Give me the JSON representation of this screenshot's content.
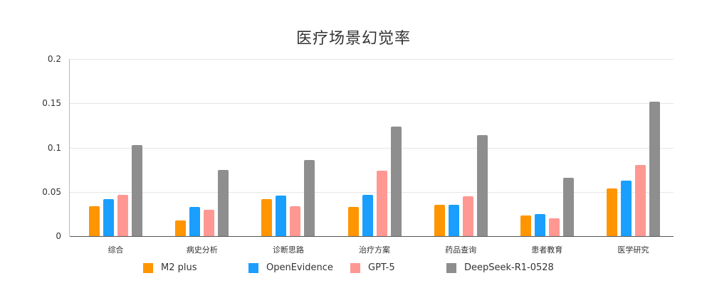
{
  "chart_data": {
    "type": "bar",
    "title": "医疗场景幻觉率",
    "xlabel": "",
    "ylabel": "",
    "ylim": [
      0,
      0.2
    ],
    "yticks": [
      "0",
      "0.05",
      "0.1",
      "0.15",
      "0.2"
    ],
    "grid": true,
    "legend_position": "bottom",
    "categories": [
      "综合",
      "病史分析",
      "诊断思路",
      "治疗方案",
      "药品查询",
      "患者教育",
      "医学研究"
    ],
    "series": [
      {
        "name": "M2 plus",
        "color": "#ff9500",
        "values": [
          0.034,
          0.018,
          0.042,
          0.033,
          0.035,
          0.023,
          0.054
        ]
      },
      {
        "name": "OpenEvidence",
        "color": "#1a9fff",
        "values": [
          0.042,
          0.033,
          0.046,
          0.047,
          0.035,
          0.025,
          0.063
        ]
      },
      {
        "name": "GPT-5",
        "color": "#ff9893",
        "values": [
          0.047,
          0.03,
          0.034,
          0.074,
          0.045,
          0.02,
          0.08
        ]
      },
      {
        "name": "DeepSeek-R1-0528",
        "color": "#8e8e8e",
        "values": [
          0.103,
          0.075,
          0.086,
          0.124,
          0.114,
          0.066,
          0.152
        ]
      }
    ]
  }
}
